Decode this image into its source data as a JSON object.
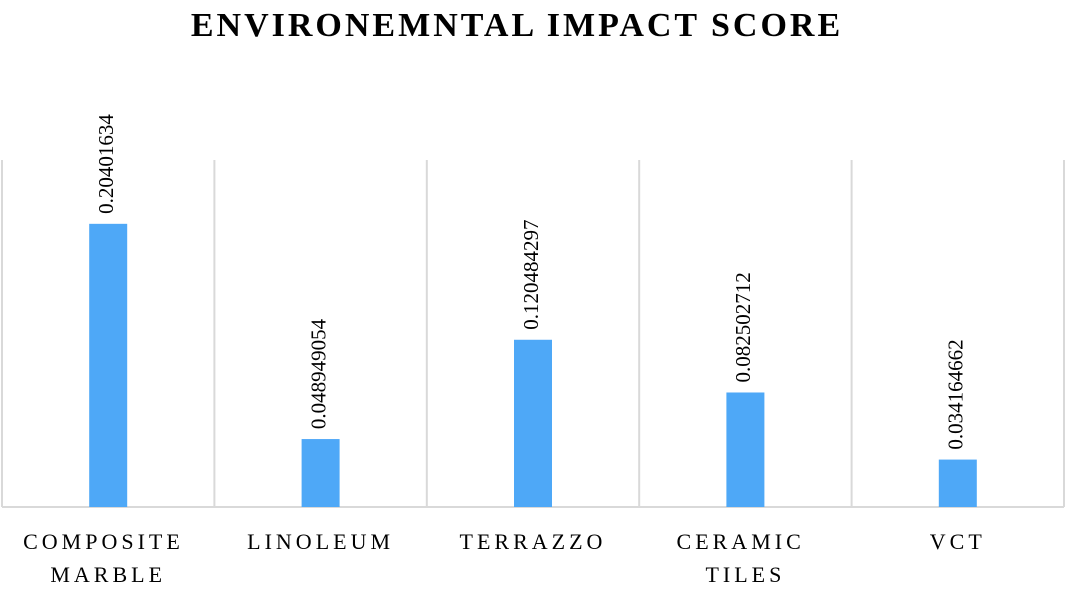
{
  "chart_data": {
    "type": "bar",
    "title": "ENVIRONEMNTAL IMPACT SCORE",
    "categories": [
      "COMPOSITE MARBLE",
      "LINOLEUM",
      "TERRAZZO",
      "CERAMIC TILES",
      "VCT"
    ],
    "values": [
      0.20401634,
      0.048949054,
      0.120484297,
      0.082502712,
      0.034164662
    ],
    "color": "#4ea8f7",
    "ylim": [
      0,
      0.25
    ],
    "grid": false
  }
}
